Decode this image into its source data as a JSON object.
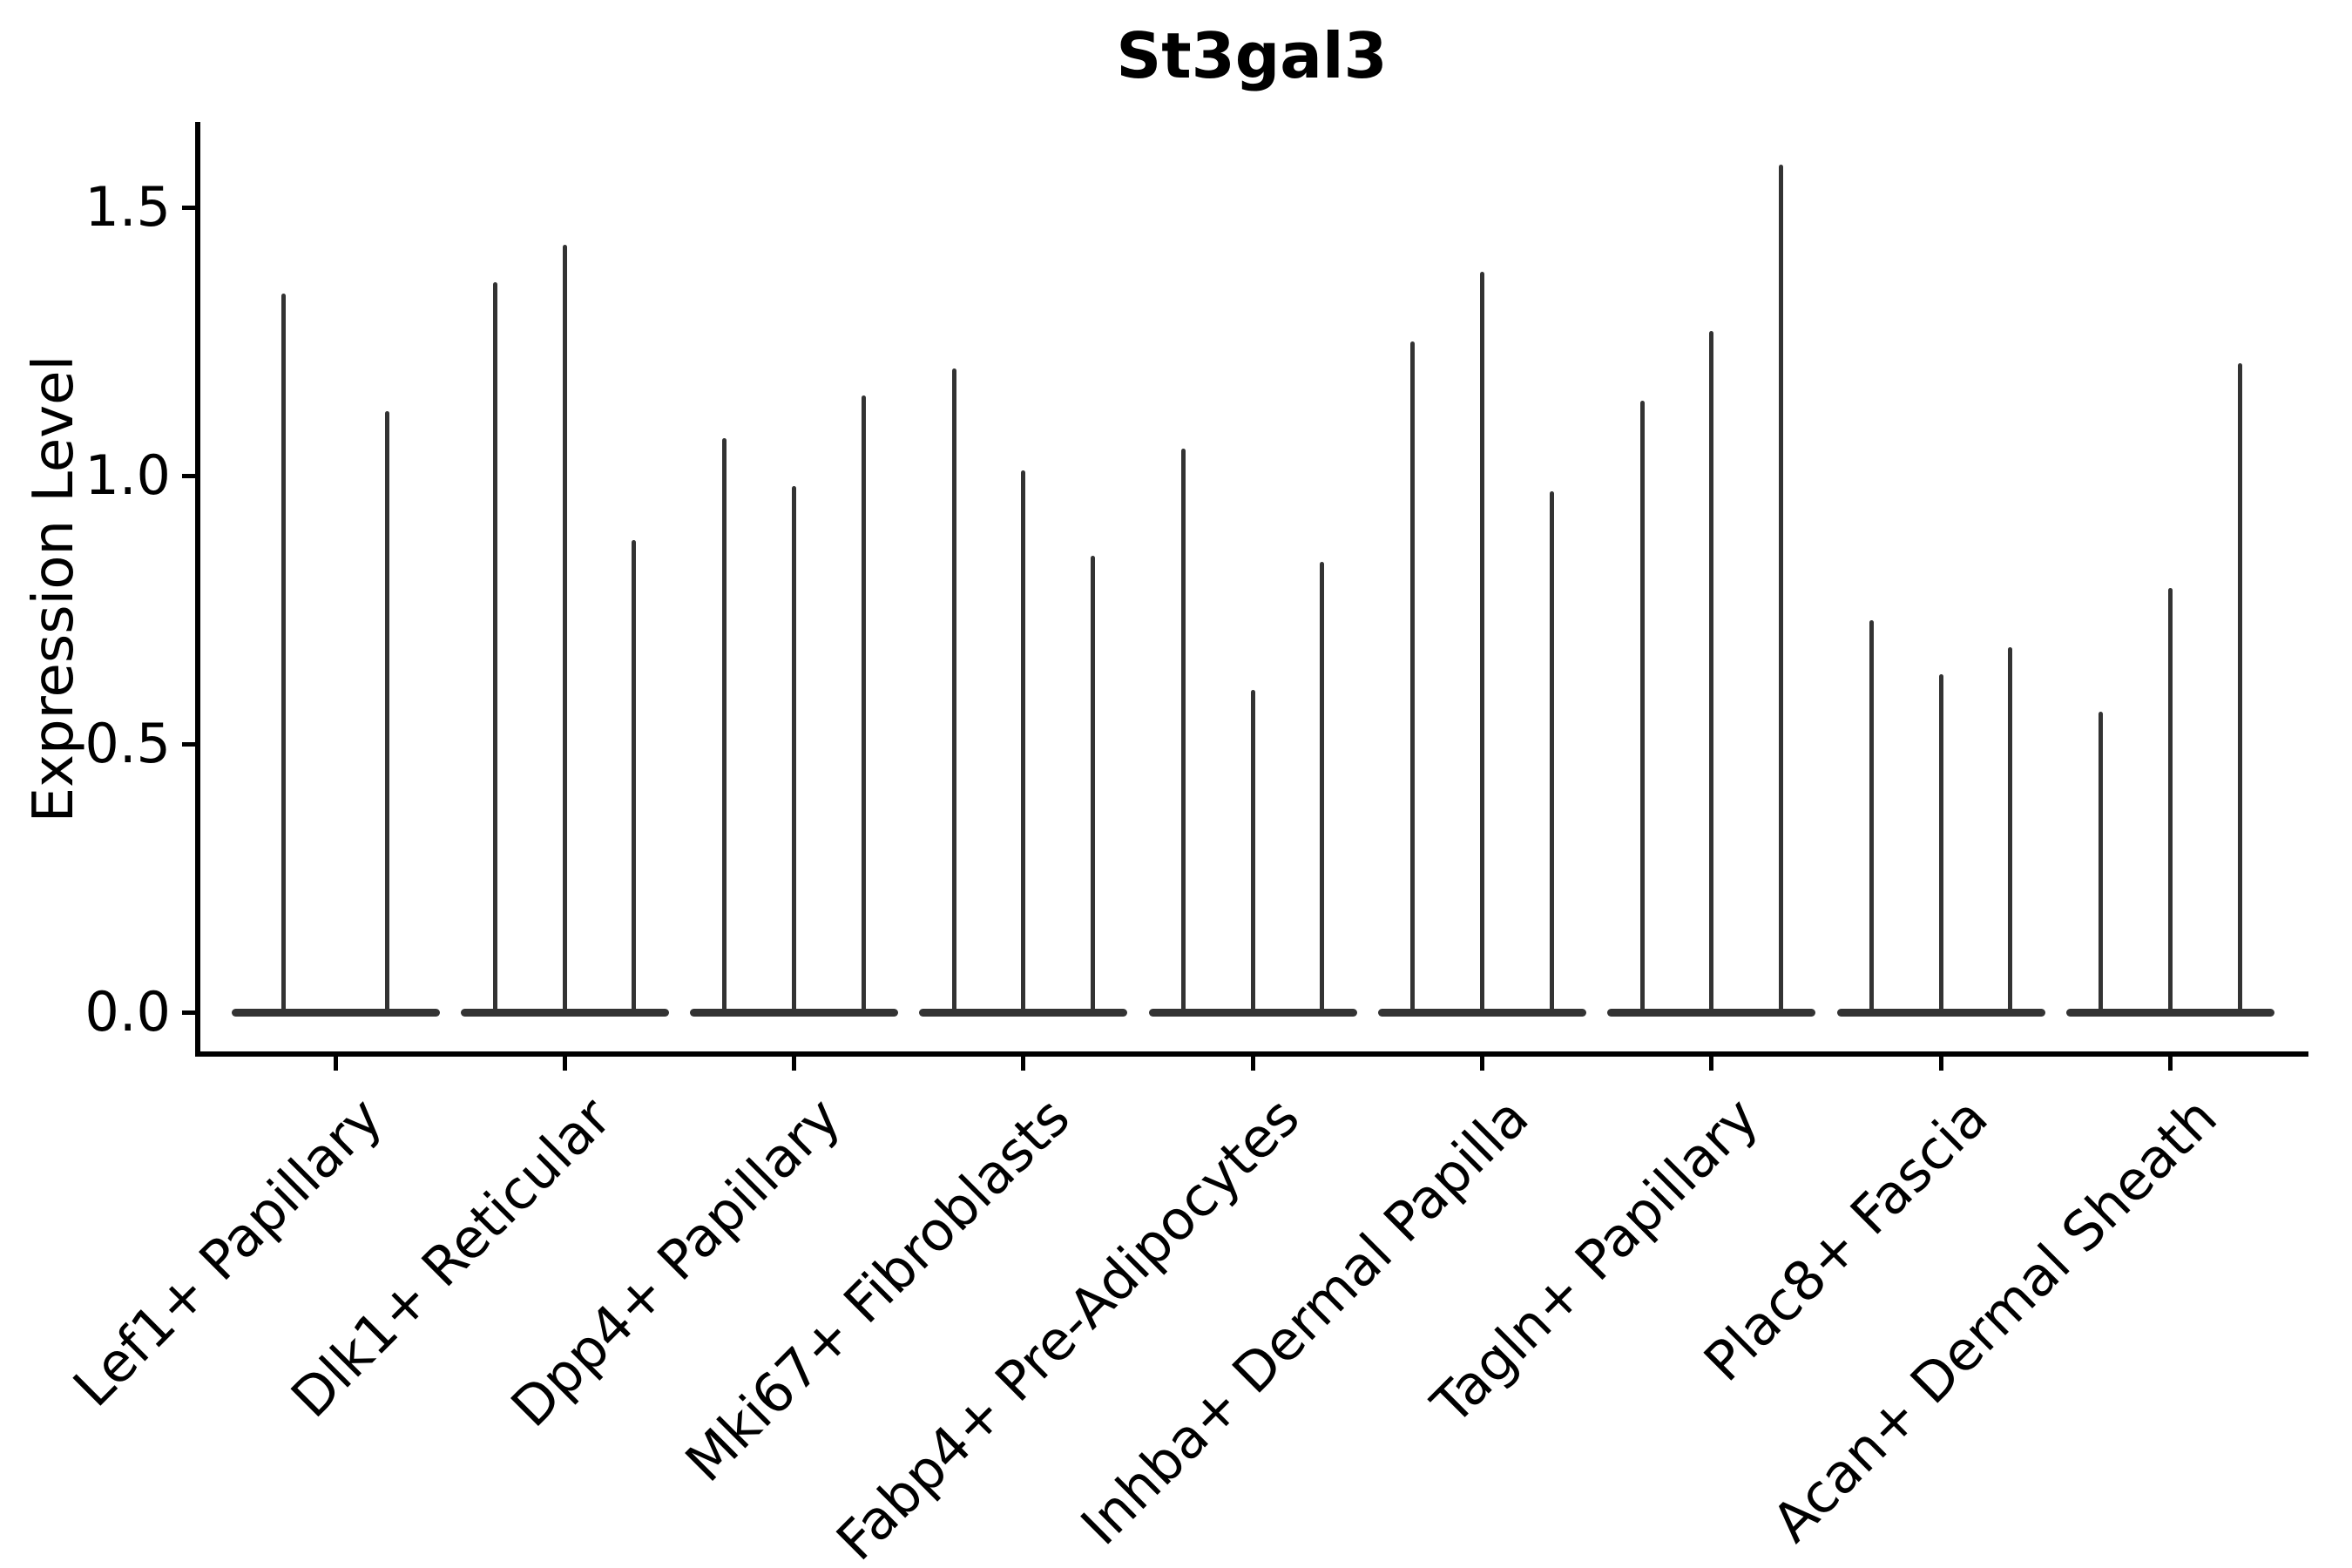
{
  "chart_data": {
    "type": "violin",
    "title": "St3gal3",
    "xlabel": "",
    "ylabel": "Expression Level",
    "yticks": [
      "0.0",
      "0.5",
      "1.0",
      "1.5"
    ],
    "ytick_values": [
      0.0,
      0.5,
      1.0,
      1.5
    ],
    "ylim": [
      -0.08,
      1.66
    ],
    "grid": false,
    "legend_position": "none",
    "description": "Violin plot of St3gal3 expression per fibroblast subtype; each category holds 2-3 collapsed violins (flat mass at 0) with thin spikes reaching each violin's maximum expression value.",
    "categories": [
      "Lef1+ Papillary",
      "Dlk1+ Reticular",
      "Dpp4+ Papillary",
      "Mki67+ Fibroblasts",
      "Fabp4+ Pre-Adipocytes",
      "Inhba+ Dermal Papilla",
      "Tagln+ Papillary",
      "Plac8+ Fascia",
      "Acan+ Dermal Sheath"
    ],
    "groups": [
      {
        "category": "Lef1+ Papillary",
        "violin_max": [
          1.34,
          1.12
        ]
      },
      {
        "category": "Dlk1+ Reticular",
        "violin_max": [
          1.36,
          1.43,
          0.88
        ]
      },
      {
        "category": "Dpp4+ Papillary",
        "violin_max": [
          1.07,
          0.98,
          1.15
        ]
      },
      {
        "category": "Mki67+ Fibroblasts",
        "violin_max": [
          1.2,
          1.01,
          0.85
        ]
      },
      {
        "category": "Fabp4+ Pre-Adipocytes",
        "violin_max": [
          1.05,
          0.6,
          0.84
        ]
      },
      {
        "category": "Inhba+ Dermal Papilla",
        "violin_max": [
          1.25,
          1.38,
          0.97
        ]
      },
      {
        "category": "Tagln+ Papillary",
        "violin_max": [
          1.14,
          1.27,
          1.58
        ]
      },
      {
        "category": "Plac8+ Fascia",
        "violin_max": [
          0.73,
          0.63,
          0.68
        ]
      },
      {
        "category": "Acan+ Dermal Sheath",
        "violin_max": [
          0.56,
          0.79,
          1.21
        ]
      }
    ],
    "colors": {
      "violin": "#333333",
      "axis": "#000000",
      "text": "#000000",
      "background": "#ffffff"
    }
  }
}
